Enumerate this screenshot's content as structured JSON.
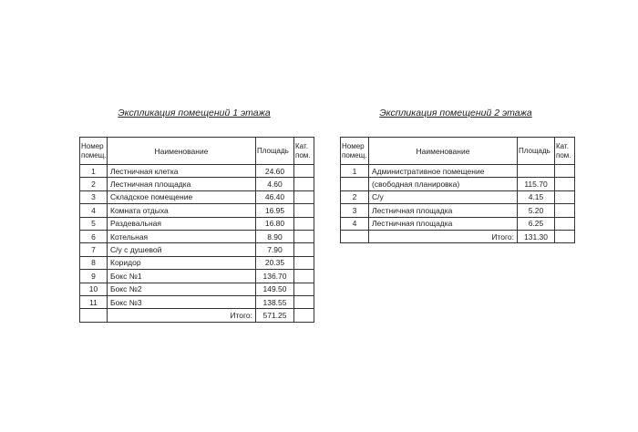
{
  "headers": {
    "num": "Номер помещ.",
    "num1": "Номер",
    "num2": "помещ.",
    "name": "Наименование",
    "area": "Площадь",
    "cat1": "Кат.",
    "cat2": "пом.",
    "total": "Итого:"
  },
  "floor1": {
    "title": "Экспликация помещений 1 этажа",
    "rows": [
      {
        "n": "1",
        "name": "Лестничная клетка",
        "area": "24.60"
      },
      {
        "n": "2",
        "name": "Лестничная площадка",
        "area": "4.60"
      },
      {
        "n": "3",
        "name": "Складское помещение",
        "area": "46.40"
      },
      {
        "n": "4",
        "name": "Комната отдыха",
        "area": "16.95"
      },
      {
        "n": "5",
        "name": "Раздевальная",
        "area": "16.80"
      },
      {
        "n": "6",
        "name": "Котельная",
        "area": "8.90"
      },
      {
        "n": "7",
        "name": "С/у с душевой",
        "area": "7.90"
      },
      {
        "n": "8",
        "name": "Коридор",
        "area": "20.35"
      },
      {
        "n": "9",
        "name": "Бокс №1",
        "area": "136.70"
      },
      {
        "n": "10",
        "name": "Бокс №2",
        "area": "149.50"
      },
      {
        "n": "11",
        "name": "Бокс №3",
        "area": "138.55"
      }
    ],
    "total": "571.25"
  },
  "floor2": {
    "title": "Экспликация помещений 2 этажа",
    "rows": [
      {
        "n": "1",
        "name": "Административное помещение",
        "area": ""
      },
      {
        "n": "",
        "name": "(свободная планировка)",
        "area": "115.70"
      },
      {
        "n": "2",
        "name": "С/у",
        "area": "4.15"
      },
      {
        "n": "3",
        "name": "Лестничная площадка",
        "area": "5.20"
      },
      {
        "n": "4",
        "name": "Лестничная площадка",
        "area": "6.25"
      }
    ],
    "total": "131.30"
  }
}
